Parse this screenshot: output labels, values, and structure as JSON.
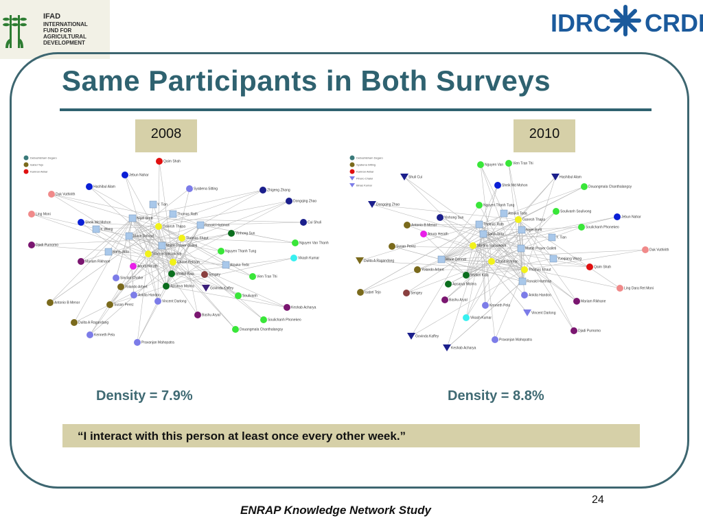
{
  "header": {
    "ifad_logo": {
      "short": "IFAD",
      "lines": [
        "INTERNATIONAL",
        "FUND FOR",
        "AGRICULTURAL",
        "DEVELOPMENT"
      ]
    },
    "idrc_logo": {
      "left": "IDRC",
      "right": "CRDI"
    }
  },
  "slide": {
    "title": "Same Participants in Both Surveys",
    "colors": {
      "title": "#2f6270",
      "frame": "#3d6670",
      "label_band": "#d6d0a8",
      "density": "#3f6a73"
    }
  },
  "networks": [
    {
      "year": "2008",
      "density": "Density = 7.9%",
      "legend": [
        "Debashisham Degaro",
        "Isabel Tejo",
        "Kamran Akbar"
      ],
      "labels": [
        "Qaim Shah",
        "Jebun Nahar",
        "Hashibul Alam",
        "Syabena Sitting",
        "Zhigeng Zhang",
        "Dongqing Zhao",
        "Cui Shuli",
        "Duk Vuthirith",
        "Y. Tian",
        "Thomas Rath",
        "Ling Moni",
        "Sheik Md Mohon",
        "Nigel Brett",
        "Ganesh Thapa",
        "Ronald Hartman",
        "Y. Wang",
        "Marie Donnat",
        "Thomas Ehaut",
        "Yinhong Sun",
        "Djadi Purnomo",
        "Mattie Prayer Galleti",
        "Nguyen Thanh Tung",
        "Nguyen Van Thanh",
        "Sana Jatta",
        "Martina Spisiakova",
        "Vikash Kumar",
        "Mariam Rikhane",
        "Anura Herath",
        "Chase Pelman",
        "Atouko Toda",
        "Shakiri Kala",
        "Sengey",
        "Vien Tran Thi",
        "Sinclair Chalke",
        "Yolando Arbert",
        "Apsarva Mishra",
        "Govinda Kaffey",
        "Ankita Handoo",
        "Antonio B Menor",
        "Vincent Darlong",
        "Soulivanh",
        "Susan Perez",
        "Keshab Acharya",
        "Bashu Aryal",
        "Soulichanh Phonekeo",
        "Dulita A Ragandang",
        "Douangmala Chanthalangsy",
        "Kenneth Pela",
        "Pravanjan Mahopatra"
      ]
    },
    {
      "year": "2010",
      "density": "Density = 8.8%",
      "legend": [
        "Debashisham Degaro",
        "Syabena Sitting",
        "Kamran Akbar",
        "Pinoro Chaloi",
        "Binas Kumar"
      ],
      "labels": [
        "Nguyen Van",
        "Vien Tran Thi",
        "Shuli Cui",
        "Hashibul Alam",
        "Sheik Md Mohon",
        "Douangmala Chanthalangsy",
        "Dongqing Zhao",
        "Nguyen Thanh Tung",
        "Atouko Toda",
        "Soulivanh Soulivong",
        "Yinhong Sun",
        "Thomas Rath",
        "Ganesh Thapa",
        "Jebun Nahar",
        "Antonio B Menor",
        "Nigel Brett",
        "Soulichanh Phonekeo",
        "Anura Herath",
        "Sana Jatta",
        "Y. Tian",
        "Susan Perez",
        "Martina Spisiakova",
        "Mattie Prayer Galleti",
        "Duk Vuthirith",
        "Dulita A Ragandang",
        "Marie Donnat",
        "Chase Pelman",
        "Yuoqiang Wang",
        "Yolando Arbert",
        "Thomas Ehaut",
        "Qaim Shah",
        "Shakiri Kala",
        "Ronald Hartman",
        "Isabel Tejo",
        "Sengey",
        "Apsarva Mishra",
        "Ling Dara Ret Moni",
        "Ankita Handoo",
        "Mariam Rikhane",
        "Bashu Aryal",
        "Kenneth Pela",
        "Vikash Kumar",
        "Vincent Darlong",
        "Djadi Purnomo",
        "Govinda Kaffey",
        "Pravanjan Mahopatra",
        "Keshab Acharya"
      ]
    }
  ],
  "quote": "“I interact with this person  at least once every other week.”",
  "footer": {
    "page_number": "24",
    "text": "ENRAP Knowledge Network Study"
  },
  "node_colors": {
    "green": "#39e639",
    "blue": "#0a1fd6",
    "navy": "#1b1f8c",
    "periwinkle": "#7c7ce8",
    "light_blue_square": "#a9c8ea",
    "yellow": "#f2f21a",
    "magenta": "#e81ee8",
    "dark_green": "#0b6e1e",
    "olive": "#7a6a1c",
    "salmon": "#f08a8a",
    "purple": "#7a1670",
    "red": "#e01010",
    "cyan": "#38f0f0",
    "brown": "#8a4040",
    "teal": "#3a7a7a",
    "indigo_triangle": "#3b1f7a"
  }
}
